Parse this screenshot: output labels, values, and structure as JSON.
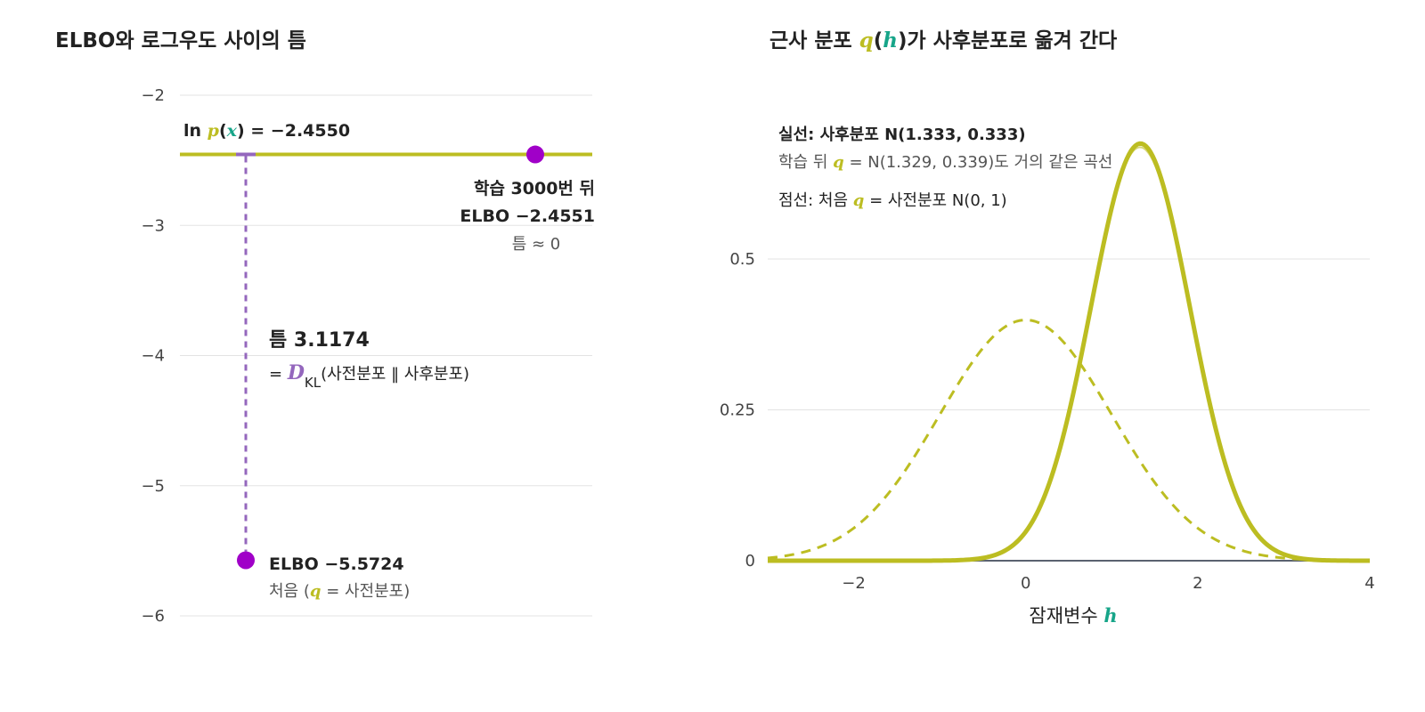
{
  "colors": {
    "curve": "#bcbd22",
    "point": "#a000c8",
    "gap": "#9467bd",
    "latent": "#17a589",
    "baseline": "#5a6270"
  },
  "left": {
    "title": "ELBO와 로그우도 사이의 틈",
    "loglik_label": {
      "prefix": "ln ",
      "p": "p",
      "open": "(",
      "x": "x",
      "close": ")",
      "value_text": " = −2.4550"
    },
    "after": {
      "label": "학습 3000번 뒤",
      "elbo_text": "ELBO −2.4551",
      "gap_text": "틈 ≈ 0"
    },
    "gap": {
      "label": "틈 3.1174",
      "eq": "= ",
      "d": "D",
      "sub": "KL",
      "paren": "(사전분포 ‖ 사후분포)"
    },
    "start": {
      "elbo_text": "ELBO −5.5724",
      "note_pre": "처음 (",
      "q": "q",
      "note_post": " = 사전분포)"
    }
  },
  "right": {
    "title": {
      "pre": "근사 분포 ",
      "q": "q",
      "open": "(",
      "h": "h",
      "post": ")가 사후분포로 옮겨 간다"
    },
    "legend": {
      "solid": "실선: 사후분포 N(1.333, 0.333)",
      "trained_pre": "학습 뒤 ",
      "trained_q": "q",
      "trained_post": " = N(1.329, 0.339)도 거의 같은 곡선",
      "dashed_pre": "점선: 처음 ",
      "dashed_q": "q",
      "dashed_post": " = 사전분포 N(0, 1)"
    },
    "xlabel_text": "잠재변수 ",
    "xlabel_sym": "h"
  },
  "chart_data": [
    {
      "type": "line",
      "title": "ELBO와 로그우도 사이의 틈",
      "ylim": [
        -6,
        -2
      ],
      "yticks": [
        -2,
        -3,
        -4,
        -5,
        -6
      ],
      "ytick_labels": [
        "−2",
        "−3",
        "−4",
        "−5",
        "−6"
      ],
      "grid": true,
      "series": [
        {
          "name": "ln p(x)",
          "values": [
            -2.455
          ]
        }
      ],
      "points": [
        {
          "label": "처음",
          "elbo": -5.5724
        },
        {
          "label": "학습 3000번 뒤",
          "elbo": -2.4551
        }
      ],
      "gap": 3.1174
    },
    {
      "type": "line",
      "title": "근사 분포 q(h)가 사후분포로 옮겨 간다",
      "xlabel": "잠재변수 h",
      "xlim": [
        -3,
        4
      ],
      "ylim": [
        0,
        0.7
      ],
      "xticks": [
        -2,
        0,
        2,
        4
      ],
      "xtick_labels": [
        "−2",
        "0",
        "2",
        "4"
      ],
      "yticks": [
        0,
        0.25,
        0.5
      ],
      "ytick_labels": [
        "0",
        "0.25",
        "0.5"
      ],
      "grid": true,
      "series": [
        {
          "name": "사후분포",
          "style": "solid",
          "mean": 1.333,
          "variance": 0.333
        },
        {
          "name": "학습 뒤 q",
          "style": "solid",
          "mean": 1.329,
          "variance": 0.339
        },
        {
          "name": "처음 q = 사전분포",
          "style": "dashed",
          "mean": 0,
          "variance": 1
        }
      ]
    }
  ]
}
